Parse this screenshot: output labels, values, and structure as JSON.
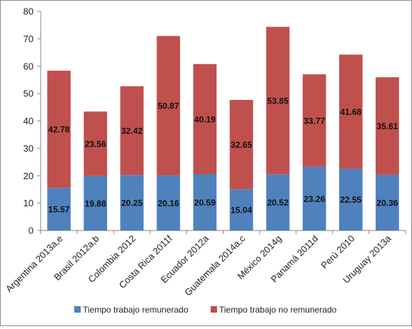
{
  "chart_data": {
    "type": "bar",
    "stacked": true,
    "title": "",
    "xlabel": "",
    "ylabel": "",
    "ylim": [
      0,
      80
    ],
    "yticks": [
      "0",
      "10",
      "20",
      "30",
      "40",
      "50",
      "60",
      "70",
      "80"
    ],
    "grid": false,
    "legend_position": "bottom",
    "categories": [
      "Argentina 2013a,e",
      "Brasil 2012a,b",
      "Colombia 2012",
      "Costa Rica 2011f",
      "Ecuador 2012a",
      "Guatemala 2014a,c",
      "México 2014g",
      "Panamá 2011d",
      "Perú 2010",
      "Uruguay 2013a"
    ],
    "series": [
      {
        "name": "Tiempo trabajo remunerado",
        "color": "#4f81bd",
        "values": [
          15.57,
          19.88,
          20.25,
          20.16,
          20.59,
          15.04,
          20.52,
          23.26,
          22.55,
          20.36
        ],
        "labels": [
          "15.57",
          "19.88",
          "20.25",
          "20.16",
          "20.59",
          "15.04",
          "20.52",
          "23.26",
          "22.55",
          "20.36"
        ]
      },
      {
        "name": "Tiempo trabajo no remunerado",
        "color": "#c0504d",
        "values": [
          42.78,
          23.56,
          32.42,
          50.87,
          40.19,
          32.65,
          53.85,
          33.77,
          41.68,
          35.61
        ],
        "labels": [
          "42.78",
          "23.56",
          "32.42",
          "50.87",
          "40.19",
          "32.65",
          "53.85",
          "33.77",
          "41.68",
          "35.61"
        ]
      }
    ]
  }
}
